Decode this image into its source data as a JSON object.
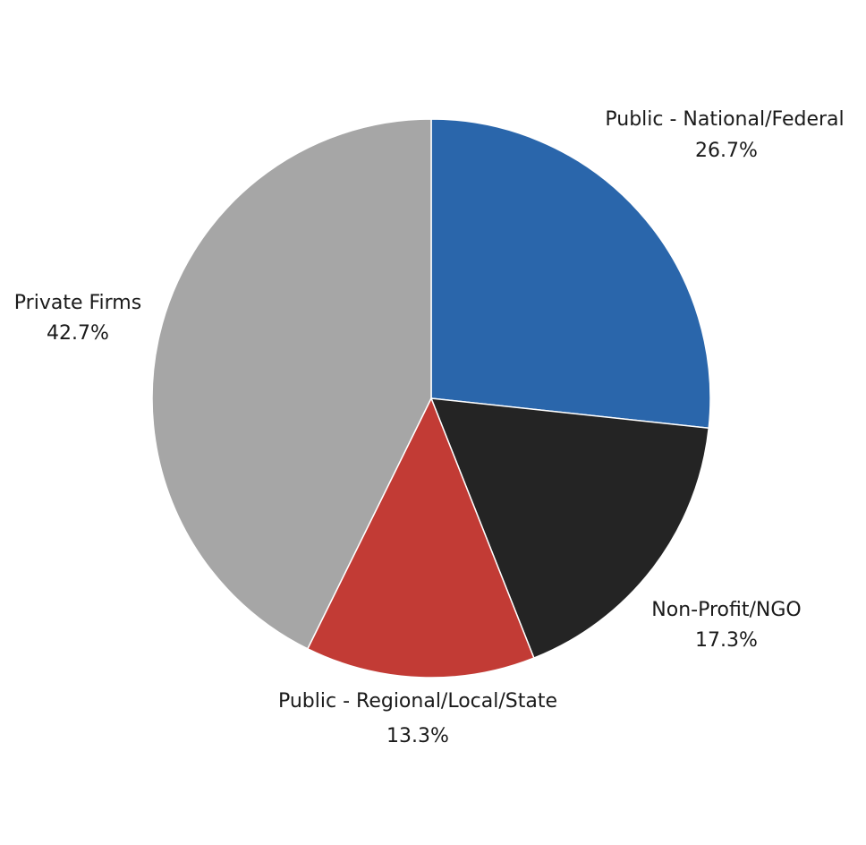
{
  "chart_data": {
    "type": "pie",
    "start_angle": "12 o'clock",
    "direction": "clockwise",
    "slices": [
      {
        "name": "Public - National/Federal",
        "value": 26.7,
        "label": "26.7%",
        "color": "#2A66AB"
      },
      {
        "name": "Non-Profit/NGO",
        "value": 17.3,
        "label": "17.3%",
        "color": "#242424"
      },
      {
        "name": "Public - Regional/Local/State",
        "value": 13.3,
        "label": "13.3%",
        "color": "#C23B35"
      },
      {
        "name": "Private Firms",
        "value": 42.7,
        "label": "42.7%",
        "color": "#A6A6A6"
      }
    ]
  }
}
